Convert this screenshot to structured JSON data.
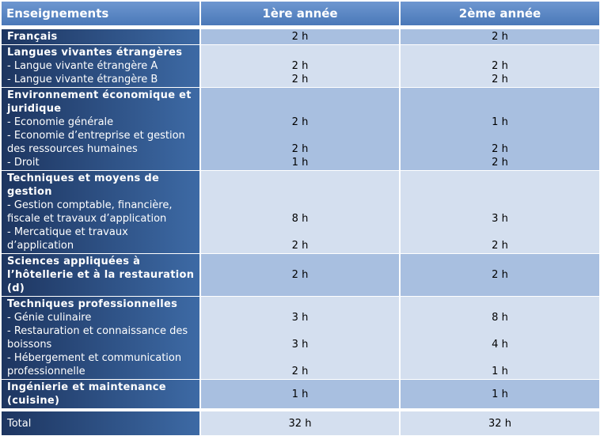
{
  "header": {
    "subject": "Enseignements",
    "year1": "1ère année",
    "year2": "2ème année"
  },
  "rows": [
    {
      "title": "Français",
      "year1": "2 h",
      "year2": "2 h"
    },
    {
      "title": "Langues vivantes étrangères",
      "items": [
        {
          "label": "- Langue vivante étrangère A",
          "year1": "2 h",
          "year2": "2 h"
        },
        {
          "label": "- Langue vivante étrangère B",
          "year1": "2 h",
          "year2": "2 h"
        }
      ]
    },
    {
      "title": "Environnement économique et juridique",
      "items": [
        {
          "label": "- Economie générale",
          "year1": "2 h",
          "year2": "1 h"
        },
        {
          "label": "- Economie d’entreprise et gestion des ressources humaines",
          "year1": "2 h",
          "year2": "2 h"
        },
        {
          "label": "- Droit",
          "year1": "1 h",
          "year2": "2 h"
        }
      ]
    },
    {
      "title": "Techniques et moyens de gestion",
      "items": [
        {
          "label": "- Gestion comptable, financière, fiscale et travaux d’application",
          "year1": "8 h",
          "year2": "3 h"
        },
        {
          "label": "- Mercatique et travaux d’application",
          "year1": "2 h",
          "year2": "2 h"
        }
      ]
    },
    {
      "title": "Sciences appliquées à l’hôtellerie et à la restauration (d)",
      "year1": "2 h",
      "year2": "2 h"
    },
    {
      "title": "Techniques professionnelles",
      "items": [
        {
          "label": "- Génie culinaire",
          "year1": "3 h",
          "year2": "8 h"
        },
        {
          "label": "- Restauration et connaissance des boissons",
          "year1": "3 h",
          "year2": "4 h"
        },
        {
          "label": "- Hébergement et communication professionnelle",
          "year1": "2 h",
          "year2": "1 h"
        }
      ]
    },
    {
      "title": "Ingénierie et maintenance (cuisine)",
      "year1": "1 h",
      "year2": "1 h"
    }
  ],
  "total": {
    "label": "Total",
    "year1": "32 h",
    "year2": "32 h"
  }
}
